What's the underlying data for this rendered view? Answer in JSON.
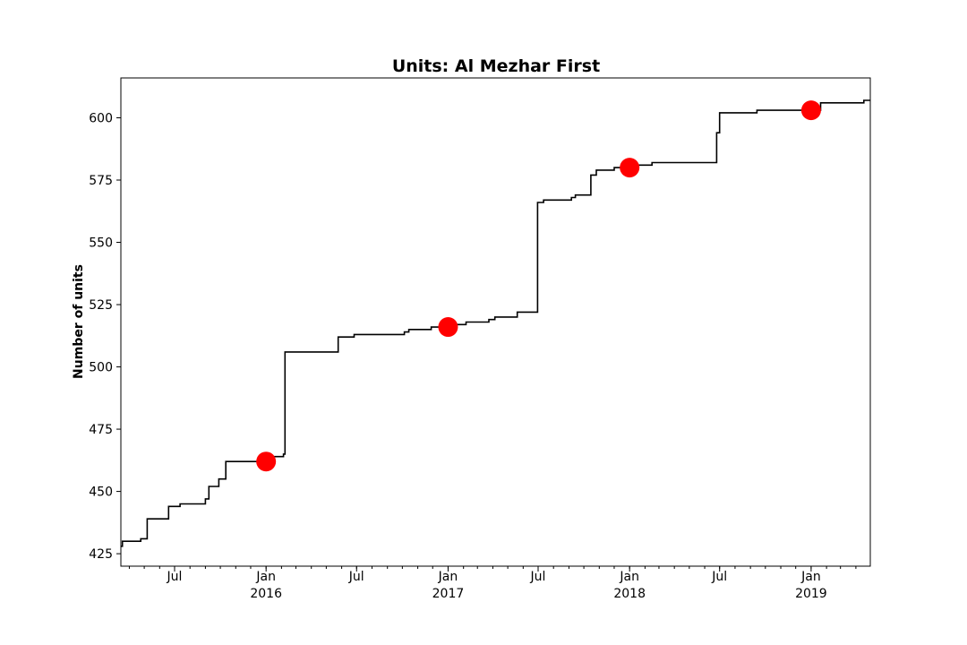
{
  "chart_data": {
    "type": "line",
    "title": "Units: Al Mezhar First",
    "xlabel": "",
    "ylabel": "Number of units",
    "xlim": [
      "2015-03-15",
      "2019-04-30"
    ],
    "ylim": [
      420,
      616
    ],
    "y_ticks": [
      425,
      450,
      475,
      500,
      525,
      550,
      575,
      600
    ],
    "x_ticks": [
      {
        "date": "2015-07-01",
        "label": "Jul"
      },
      {
        "date": "2016-01-01",
        "label": "Jan",
        "year": "2016"
      },
      {
        "date": "2016-07-01",
        "label": "Jul"
      },
      {
        "date": "2017-01-01",
        "label": "Jan",
        "year": "2017"
      },
      {
        "date": "2017-07-01",
        "label": "Jul"
      },
      {
        "date": "2018-01-01",
        "label": "Jan",
        "year": "2018"
      },
      {
        "date": "2018-07-01",
        "label": "Jul"
      },
      {
        "date": "2019-01-01",
        "label": "Jan",
        "year": "2019"
      }
    ],
    "grid": false,
    "series": [
      {
        "color": "#000000",
        "drawstyle": "steps-post",
        "points": [
          [
            "2015-03-15",
            428
          ],
          [
            "2015-03-18",
            430
          ],
          [
            "2015-04-24",
            431
          ],
          [
            "2015-05-07",
            439
          ],
          [
            "2015-06-19",
            444
          ],
          [
            "2015-07-12",
            445
          ],
          [
            "2015-09-01",
            447
          ],
          [
            "2015-09-08",
            452
          ],
          [
            "2015-09-28",
            455
          ],
          [
            "2015-10-12",
            462
          ],
          [
            "2016-01-12",
            464
          ],
          [
            "2016-02-05",
            465
          ],
          [
            "2016-02-08",
            506
          ],
          [
            "2016-05-25",
            512
          ],
          [
            "2016-06-26",
            513
          ],
          [
            "2016-10-05",
            514
          ],
          [
            "2016-10-14",
            515
          ],
          [
            "2016-11-28",
            516
          ],
          [
            "2017-01-15",
            517
          ],
          [
            "2017-02-06",
            518
          ],
          [
            "2017-03-24",
            519
          ],
          [
            "2017-04-05",
            520
          ],
          [
            "2017-05-20",
            522
          ],
          [
            "2017-06-30",
            566
          ],
          [
            "2017-07-12",
            567
          ],
          [
            "2017-09-06",
            568
          ],
          [
            "2017-09-14",
            569
          ],
          [
            "2017-10-15",
            577
          ],
          [
            "2017-10-26",
            579
          ],
          [
            "2017-12-01",
            580
          ],
          [
            "2018-01-16",
            581
          ],
          [
            "2018-02-15",
            582
          ],
          [
            "2018-06-25",
            594
          ],
          [
            "2018-07-01",
            602
          ],
          [
            "2018-09-14",
            603
          ],
          [
            "2019-01-20",
            606
          ],
          [
            "2019-04-17",
            607
          ],
          [
            "2019-04-30",
            607
          ]
        ]
      }
    ],
    "markers": {
      "color": "#ff0000",
      "points": [
        [
          "2016-01-01",
          462
        ],
        [
          "2017-01-01",
          516
        ],
        [
          "2018-01-01",
          580
        ],
        [
          "2019-01-01",
          603
        ]
      ]
    }
  }
}
